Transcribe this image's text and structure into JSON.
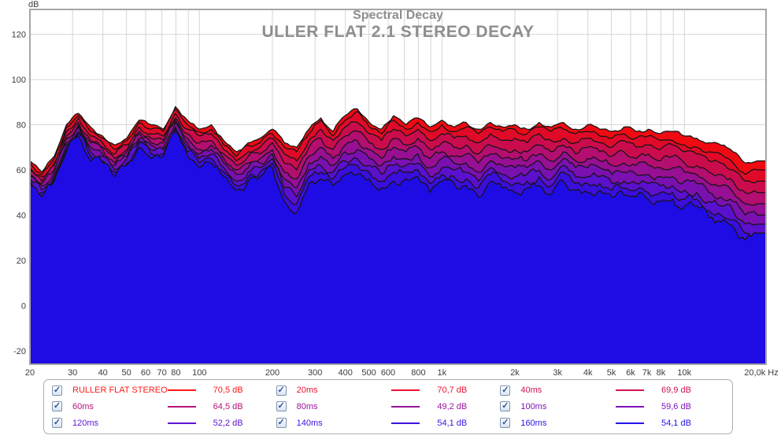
{
  "titles": {
    "title": "Spectral Decay",
    "subtitle": "ULLER FLAT 2.1 STEREO DECAY",
    "color": "#8e8e8e"
  },
  "chart_data": {
    "type": "area",
    "title": "Spectral Decay",
    "subtitle": "ULLER FLAT 2.1 STEREO DECAY",
    "legend_position": "bottom",
    "grid": true,
    "x_axis": {
      "label": "Hz",
      "scale": "log",
      "min": 20,
      "max": 20000,
      "tick_freqs": [
        20,
        30,
        40,
        50,
        60,
        70,
        80,
        100,
        200,
        300,
        400,
        500,
        600,
        800,
        1000,
        2000,
        3000,
        4000,
        5000,
        6000,
        7000,
        8000,
        10000,
        20000
      ],
      "tick_labels": [
        "20",
        "30",
        "40",
        "50",
        "60",
        "70",
        "80",
        "100",
        "200",
        "300",
        "400",
        "500",
        "600",
        "800",
        "1k",
        "2k",
        "3k",
        "4k",
        "5k",
        "6k",
        "7k",
        "8k",
        "10k",
        "20,0k Hz"
      ],
      "gridline_freqs": [
        30,
        40,
        50,
        60,
        70,
        80,
        90,
        100,
        200,
        300,
        400,
        500,
        600,
        700,
        800,
        900,
        1000,
        2000,
        3000,
        4000,
        5000,
        6000,
        7000,
        8000,
        9000,
        10000
      ]
    },
    "y_axis": {
      "label": "dB",
      "min": -20,
      "max": 120,
      "tick_step": 20,
      "ticks": [
        120,
        100,
        80,
        60,
        40,
        20,
        0,
        -20
      ]
    },
    "freqs": [
      20,
      22.4,
      25.2,
      28.3,
      31.7,
      35.6,
      39.9,
      44.8,
      50.2,
      56.4,
      63.2,
      71,
      79.6,
      89.3,
      100,
      112,
      126,
      142,
      159,
      178,
      200,
      224,
      252,
      283,
      317,
      356,
      399,
      448,
      502,
      564,
      632,
      710,
      796,
      893,
      1000,
      1122,
      1259,
      1413,
      1585,
      1778,
      2000,
      2244,
      2518,
      2825,
      3170,
      3557,
      3991,
      4477,
      5024,
      5637,
      6325,
      7096,
      7962,
      8934,
      10024,
      11247,
      12619,
      14159,
      15887,
      17825,
      20000
    ],
    "series": [
      {
        "name": "RULLER FLAT STEREO",
        "color": "#ef0a12",
        "values": [
          64,
          59,
          66,
          80,
          85,
          79,
          75,
          71,
          74,
          82,
          80,
          78,
          88,
          82,
          78,
          80,
          73,
          68,
          72,
          74,
          78,
          72,
          70,
          78,
          83,
          77,
          84,
          87,
          81,
          78,
          84,
          80,
          83,
          79,
          82,
          79,
          81,
          78,
          81,
          79,
          80,
          78,
          81,
          79,
          81,
          78,
          80,
          78,
          77,
          79,
          77,
          78,
          76,
          77,
          75,
          74,
          72,
          71,
          68,
          63,
          64
        ]
      },
      {
        "name": "20ms",
        "color": "#e00a28",
        "values": [
          63,
          58,
          65,
          79,
          84,
          77,
          74,
          69,
          73,
          81,
          78,
          77,
          87,
          80,
          77,
          78,
          71,
          66,
          71,
          72,
          76,
          70,
          68,
          76,
          82,
          75,
          82,
          86,
          79,
          76,
          82,
          78,
          81,
          77,
          80,
          77,
          79,
          76,
          79,
          77,
          78,
          76,
          79,
          77,
          78,
          76,
          77,
          75,
          74,
          76,
          74,
          75,
          73,
          73,
          71,
          70,
          68,
          67,
          63,
          58,
          60
        ]
      },
      {
        "name": "40ms",
        "color": "#cb0c4c",
        "values": [
          61,
          57,
          63,
          77,
          83,
          75,
          72,
          67,
          71,
          79,
          76,
          75,
          85,
          78,
          75,
          76,
          69,
          64,
          68,
          70,
          74,
          67,
          64,
          73,
          78,
          73,
          79,
          81,
          76,
          73,
          78,
          75,
          78,
          73,
          76,
          74,
          75,
          72,
          76,
          73,
          74,
          72,
          76,
          73,
          74,
          72,
          74,
          72,
          70,
          73,
          70,
          71,
          69,
          71,
          68,
          67,
          64,
          63,
          60,
          55,
          55
        ]
      },
      {
        "name": "60ms",
        "color": "#b30e70",
        "values": [
          60,
          55,
          62,
          75,
          81,
          73,
          70,
          65,
          69,
          77,
          74,
          73,
          83,
          76,
          72,
          73,
          67,
          62,
          66,
          67,
          72,
          63,
          60,
          70,
          74,
          69,
          75,
          77,
          72,
          69,
          74,
          71,
          74,
          69,
          72,
          70,
          71,
          67,
          71,
          69,
          69,
          68,
          71,
          68,
          71,
          67,
          70,
          68,
          66,
          68,
          65,
          67,
          64,
          66,
          63,
          62,
          59,
          58,
          55,
          50,
          50
        ]
      },
      {
        "name": "80ms",
        "color": "#970f92",
        "values": [
          58,
          54,
          60,
          74,
          80,
          72,
          69,
          63,
          68,
          76,
          72,
          72,
          82,
          74,
          69,
          71,
          65,
          60,
          63,
          65,
          69,
          59,
          56,
          66,
          70,
          65,
          71,
          73,
          69,
          65,
          70,
          68,
          70,
          65,
          68,
          66,
          67,
          63,
          67,
          65,
          65,
          64,
          67,
          64,
          68,
          64,
          65,
          64,
          62,
          63,
          62,
          62,
          61,
          61,
          59,
          58,
          54,
          53,
          50,
          45,
          45
        ]
      },
      {
        "name": "100ms",
        "color": "#7a10b0",
        "values": [
          57,
          53,
          59,
          72,
          79,
          70,
          67,
          62,
          66,
          74,
          71,
          70,
          81,
          72,
          67,
          69,
          63,
          58,
          61,
          63,
          67,
          56,
          52,
          63,
          66,
          62,
          68,
          69,
          65,
          62,
          66,
          65,
          67,
          61,
          65,
          63,
          63,
          59,
          64,
          62,
          61,
          61,
          64,
          60,
          65,
          61,
          61,
          61,
          58,
          59,
          58,
          58,
          57,
          57,
          55,
          54,
          50,
          48,
          46,
          40,
          40
        ]
      },
      {
        "name": "120ms",
        "color": "#5a10cc",
        "values": [
          56,
          51,
          57,
          71,
          77,
          68,
          66,
          60,
          65,
          73,
          69,
          69,
          79,
          70,
          65,
          67,
          61,
          55,
          59,
          61,
          65,
          52,
          48,
          60,
          62,
          59,
          64,
          65,
          62,
          58,
          62,
          62,
          63,
          57,
          61,
          60,
          59,
          55,
          61,
          58,
          57,
          58,
          60,
          56,
          62,
          57,
          57,
          57,
          54,
          55,
          54,
          54,
          53,
          53,
          51,
          50,
          46,
          44,
          42,
          36,
          36
        ]
      },
      {
        "name": "140ms",
        "color": "#3a0edb",
        "values": [
          55,
          50,
          56,
          69,
          76,
          66,
          64,
          59,
          63,
          72,
          67,
          67,
          78,
          68,
          63,
          65,
          59,
          53,
          57,
          59,
          63,
          49,
          45,
          57,
          59,
          56,
          61,
          62,
          59,
          55,
          59,
          59,
          60,
          54,
          58,
          57,
          56,
          52,
          58,
          55,
          54,
          55,
          57,
          53,
          59,
          54,
          54,
          54,
          51,
          52,
          51,
          50,
          50,
          50,
          47,
          47,
          42,
          40,
          38,
          32,
          32
        ]
      },
      {
        "name": "160ms",
        "color": "#1f0ce4",
        "values": [
          54,
          48,
          55,
          68,
          75,
          64,
          63,
          57,
          62,
          70,
          65,
          66,
          77,
          66,
          61,
          63,
          57,
          51,
          55,
          57,
          61,
          46,
          41,
          54,
          56,
          53,
          58,
          58,
          56,
          52,
          55,
          56,
          57,
          50,
          55,
          54,
          53,
          48,
          55,
          52,
          50,
          52,
          53,
          49,
          55,
          51,
          50,
          51,
          48,
          49,
          48,
          47,
          46,
          47,
          44,
          44,
          39,
          37,
          35,
          29,
          32
        ]
      }
    ]
  },
  "legend": {
    "check_glyph": "✓",
    "items": [
      {
        "label": "RULLER FLAT STEREO",
        "value": "70,5 dB",
        "color": "#ff1a1a",
        "checked": true
      },
      {
        "label": "20ms",
        "value": "70,7 dB",
        "color": "#ee1232",
        "checked": true
      },
      {
        "label": "40ms",
        "value": "69,9 dB",
        "color": "#d11453",
        "checked": true
      },
      {
        "label": "60ms",
        "value": "64,5 dB",
        "color": "#b51478",
        "checked": true
      },
      {
        "label": "80ms",
        "value": "49,2 dB",
        "color": "#9a149a",
        "checked": true
      },
      {
        "label": "100ms",
        "value": "59,6 dB",
        "color": "#7d14b8",
        "checked": true
      },
      {
        "label": "120ms",
        "value": "52,2 dB",
        "color": "#5d14d4",
        "checked": true
      },
      {
        "label": "140ms",
        "value": "54,1 dB",
        "color": "#3e12e0",
        "checked": true
      },
      {
        "label": "160ms",
        "value": "54,1 dB",
        "color": "#2412ea",
        "checked": true
      }
    ]
  },
  "style": {
    "grid_color": "#d6d6d6",
    "frame_color": "#a6a6a6",
    "tick_text_color": "#3d3d3d",
    "curve_stroke": "#141414"
  }
}
